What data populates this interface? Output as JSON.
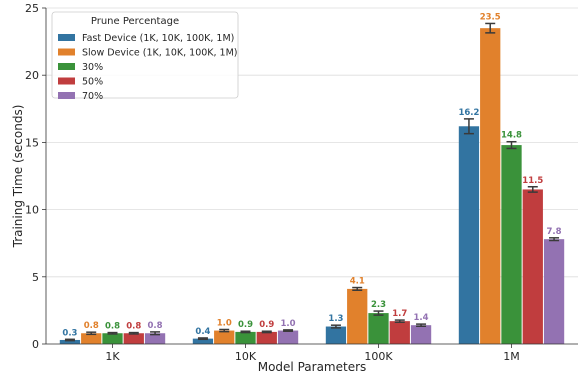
{
  "chart_data": {
    "type": "bar",
    "xlabel": "Model Parameters",
    "ylabel": "Training Time (seconds)",
    "ylim": [
      0,
      25
    ],
    "yticks": [
      0,
      5,
      10,
      15,
      20,
      25
    ],
    "grid": "y",
    "categories": [
      "1K",
      "10K",
      "100K",
      "1M"
    ],
    "legend": {
      "title": "Prune Percentage",
      "placement": "top-left"
    },
    "series": [
      {
        "name": "Fast Device (1K, 10K, 100K, 1M)",
        "color": "#3274a1",
        "values": [
          0.3,
          0.4,
          1.3,
          16.2
        ],
        "labels": [
          "0.3",
          "0.4",
          "1.3",
          "16.2"
        ],
        "error": [
          0.05,
          0.05,
          0.1,
          0.55
        ]
      },
      {
        "name": "Slow Device (1K, 10K, 100K, 1M)",
        "color": "#e1812c",
        "values": [
          0.8,
          1.0,
          4.1,
          23.5
        ],
        "labels": [
          "0.8",
          "1.0",
          "4.1",
          "23.5"
        ],
        "error": [
          0.08,
          0.08,
          0.1,
          0.35
        ]
      },
      {
        "name": "30%",
        "color": "#3a923a",
        "values": [
          0.8,
          0.9,
          2.3,
          14.8
        ],
        "labels": [
          "0.8",
          "0.9",
          "2.3",
          "14.8"
        ],
        "error": [
          0.05,
          0.05,
          0.15,
          0.25
        ]
      },
      {
        "name": "50%",
        "color": "#c03d3e",
        "values": [
          0.8,
          0.9,
          1.7,
          11.5
        ],
        "labels": [
          "0.8",
          "0.9",
          "1.7",
          "11.5"
        ],
        "error": [
          0.05,
          0.05,
          0.08,
          0.2
        ]
      },
      {
        "name": "70%",
        "color": "#9372b2",
        "values": [
          0.8,
          1.0,
          1.4,
          7.8
        ],
        "labels": [
          "0.8",
          "1.0",
          "1.4",
          "7.8"
        ],
        "error": [
          0.1,
          0.05,
          0.08,
          0.1
        ]
      }
    ]
  }
}
